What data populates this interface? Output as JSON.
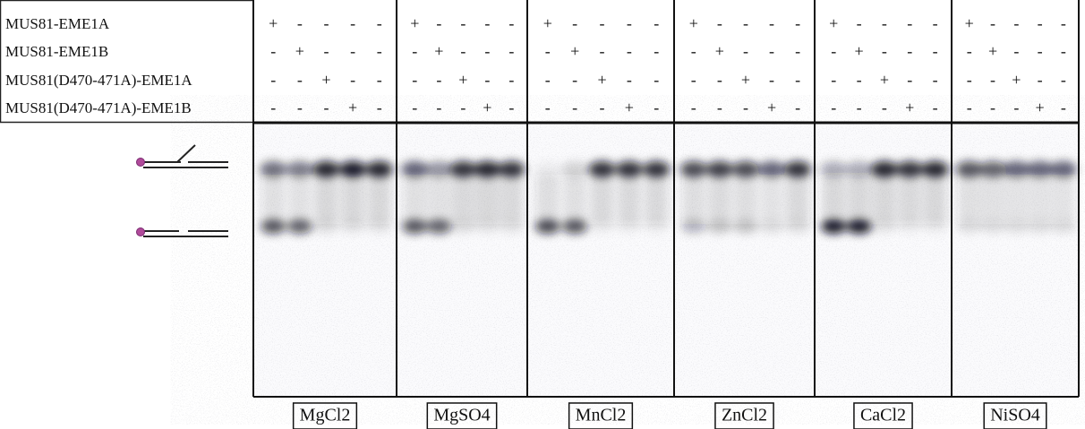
{
  "row_labels": [
    "MUS81-EME1A",
    "MUS81-EME1B",
    "MUS81(D470-471A)-EME1A",
    "MUS81(D470-471A)-EME1B"
  ],
  "panels": [
    {
      "name": "MgCl2",
      "signs": [
        [
          "+",
          "-",
          "-",
          "-",
          "-"
        ],
        [
          "-",
          "+",
          "-",
          "-",
          "-"
        ],
        [
          "-",
          "-",
          "+",
          "-",
          "-"
        ],
        [
          "-",
          "-",
          "-",
          "+",
          "-"
        ]
      ]
    },
    {
      "name": "MgSO4",
      "signs": [
        [
          "+",
          "-",
          "-",
          "-",
          "-"
        ],
        [
          "-",
          "+",
          "-",
          "-",
          "-"
        ],
        [
          "-",
          "-",
          "+",
          "-",
          "-"
        ],
        [
          "-",
          "-",
          "-",
          "+",
          "-"
        ]
      ]
    },
    {
      "name": "MnCl2",
      "signs": [
        [
          "+",
          "-",
          "-",
          "-",
          "-"
        ],
        [
          "-",
          "+",
          "-",
          "-",
          "-"
        ],
        [
          "-",
          "-",
          "+",
          "-",
          "-"
        ],
        [
          "-",
          "-",
          "-",
          "+",
          "-"
        ]
      ]
    },
    {
      "name": "ZnCl2",
      "signs": [
        [
          "+",
          "-",
          "-",
          "-",
          "-"
        ],
        [
          "-",
          "+",
          "-",
          "-",
          "-"
        ],
        [
          "-",
          "-",
          "+",
          "-",
          "-"
        ],
        [
          "-",
          "-",
          "-",
          "+",
          "-"
        ]
      ]
    },
    {
      "name": "CaCl2",
      "signs": [
        [
          "+",
          "-",
          "-",
          "-",
          "-"
        ],
        [
          "-",
          "+",
          "-",
          "-",
          "-"
        ],
        [
          "-",
          "-",
          "+",
          "-",
          "-"
        ],
        [
          "-",
          "-",
          "-",
          "+",
          "-"
        ]
      ]
    },
    {
      "name": "NiSO4",
      "signs": [
        [
          "+",
          "-",
          "-",
          "-",
          "-"
        ],
        [
          "-",
          "+",
          "-",
          "-",
          "-"
        ],
        [
          "-",
          "-",
          "+",
          "-",
          "-"
        ],
        [
          "-",
          "-",
          "-",
          "+",
          "-"
        ]
      ]
    }
  ]
}
